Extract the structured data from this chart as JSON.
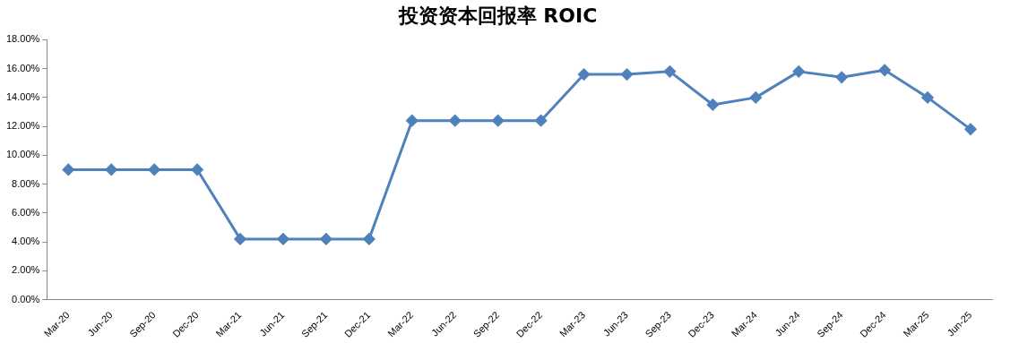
{
  "chart_data": {
    "type": "line",
    "title": "投资资本回报率 ROIC",
    "categories": [
      "Mar-20",
      "Jun-20",
      "Sep-20",
      "Dec-20",
      "Mar-21",
      "Jun-21",
      "Sep-21",
      "Dec-21",
      "Mar-22",
      "Jun-22",
      "Sep-22",
      "Dec-22",
      "Mar-23",
      "Jun-23",
      "Sep-23",
      "Dec-23",
      "Mar-24",
      "Jun-24",
      "Sep-24",
      "Dec-24",
      "Mar-25",
      "Jun-25"
    ],
    "series": [
      {
        "color": "#4f81bd",
        "values": [
          9.0,
          9.0,
          9.0,
          9.0,
          4.2,
          4.2,
          4.2,
          4.2,
          12.4,
          12.4,
          12.4,
          12.4,
          15.6,
          15.6,
          15.8,
          13.5,
          14.0,
          15.8,
          15.4,
          15.9,
          14.0,
          11.8
        ]
      }
    ],
    "ylim": [
      0,
      18
    ],
    "yticks": [
      {
        "value": 0,
        "label": "0.00%"
      },
      {
        "value": 2,
        "label": "2.00%"
      },
      {
        "value": 4,
        "label": "4.00%"
      },
      {
        "value": 6,
        "label": "6.00%"
      },
      {
        "value": 8,
        "label": "8.00%"
      },
      {
        "value": 10,
        "label": "10.00%"
      },
      {
        "value": 12,
        "label": "12.00%"
      },
      {
        "value": 14,
        "label": "14.00%"
      },
      {
        "value": 16,
        "label": "16.00%"
      },
      {
        "value": 18,
        "label": "18.00%"
      }
    ],
    "grid": false,
    "legend": false,
    "marker": "diamond",
    "line_style": "solid"
  }
}
